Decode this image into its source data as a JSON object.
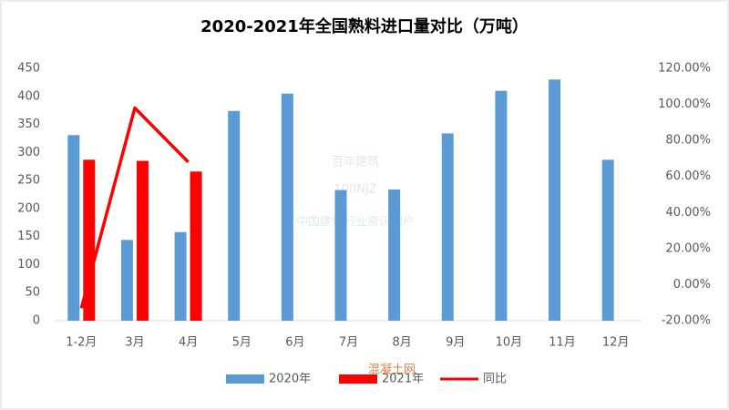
{
  "chart_data": {
    "type": "bar_line",
    "title": "2020-2021年全国熟料进口量对比（万吨）",
    "categories": [
      "1-2月",
      "3月",
      "4月",
      "5月",
      "6月",
      "7月",
      "8月",
      "9月",
      "10月",
      "11月",
      "12月"
    ],
    "series": [
      {
        "name": "2020年",
        "type": "bar",
        "color": "#5b9bd5",
        "values": [
          331,
          144,
          158,
          374,
          405,
          233,
          234,
          334,
          410,
          430,
          287
        ]
      },
      {
        "name": "2021年",
        "type": "bar",
        "color": "#ff0000",
        "values": [
          287,
          285,
          266,
          null,
          null,
          null,
          null,
          null,
          null,
          null,
          null
        ]
      },
      {
        "name": "同比",
        "type": "line",
        "axis": "y2",
        "color": "#ff0000",
        "values": [
          -13,
          98,
          68,
          null,
          null,
          null,
          null,
          null,
          null,
          null,
          null
        ]
      }
    ],
    "ylim": [
      0,
      450
    ],
    "yticks": [
      0,
      50,
      100,
      150,
      200,
      250,
      300,
      350,
      400,
      450
    ],
    "y2lim": [
      -20,
      120
    ],
    "y2ticks": [
      {
        "value": -20,
        "label": "-20.00%"
      },
      {
        "value": 0,
        "label": "0.00%"
      },
      {
        "value": 20,
        "label": "20.00%"
      },
      {
        "value": 40,
        "label": "40.00%"
      },
      {
        "value": 60,
        "label": "60.00%"
      },
      {
        "value": 80,
        "label": "80.00%"
      },
      {
        "value": 100,
        "label": "100.00%"
      },
      {
        "value": 120,
        "label": "120.00%"
      }
    ],
    "grid": false,
    "legend": "bottom",
    "watermarks": [
      "百年建筑",
      "100NJZ",
      "中国建筑行业资讯门户",
      "混凝土网"
    ]
  }
}
